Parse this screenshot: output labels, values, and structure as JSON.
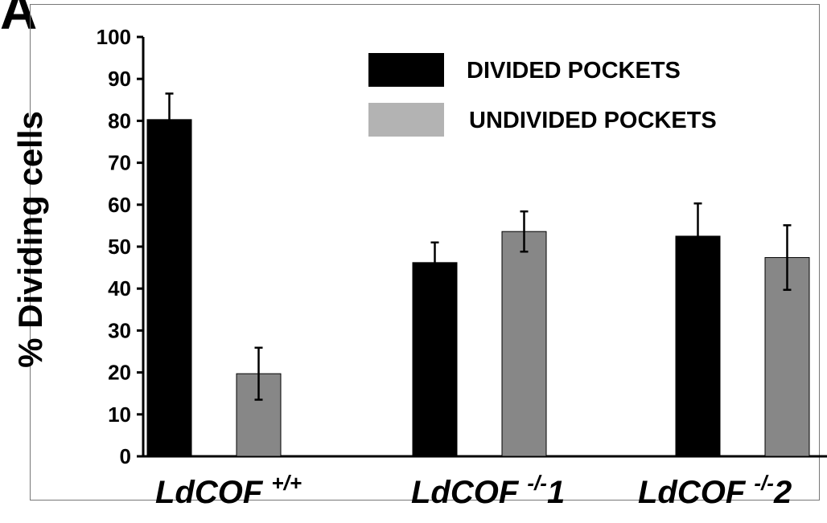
{
  "panel_label": "A",
  "colors": {
    "divided": "#000000",
    "undivided_bar": "#878787",
    "undivided_legend": "#b3b3b3"
  },
  "chart_data": {
    "type": "bar",
    "title": "",
    "xlabel": "",
    "ylabel": "% Dividing cells",
    "ylim": [
      0,
      100
    ],
    "yticks": [
      0,
      10,
      20,
      30,
      40,
      50,
      60,
      70,
      80,
      90,
      100
    ],
    "legend_position": "top-right",
    "categories": [
      {
        "name": "LdCOF",
        "superscript": "+/+",
        "suffix": ""
      },
      {
        "name": "LdCOF",
        "superscript": "-/-",
        "suffix": "1"
      },
      {
        "name": "LdCOF",
        "superscript": "-/-",
        "suffix": "2"
      }
    ],
    "series": [
      {
        "name": "DIVIDED POCKETS",
        "values": [
          80.3,
          46.2,
          52.5
        ],
        "errors": [
          6.2,
          4.8,
          7.8
        ]
      },
      {
        "name": "UNDIVIDED POCKETS",
        "values": [
          19.7,
          53.6,
          47.4
        ],
        "errors": [
          6.2,
          4.8,
          7.7
        ]
      }
    ]
  }
}
